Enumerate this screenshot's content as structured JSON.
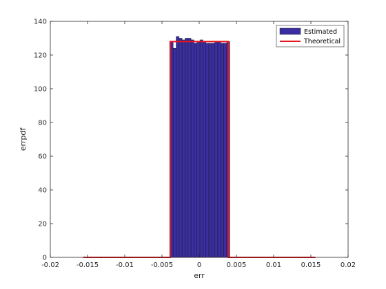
{
  "chart_data": {
    "type": "bar",
    "title": "",
    "xlabel": "err",
    "ylabel": "errpdf",
    "xlim": [
      -0.02,
      0.02
    ],
    "ylim": [
      0,
      140
    ],
    "xticks": [
      -0.02,
      -0.015,
      -0.01,
      -0.005,
      0,
      0.005,
      0.01,
      0.015,
      0.02
    ],
    "xtick_labels": [
      "-0.02",
      "-0.015",
      "-0.01",
      "-0.005",
      "0",
      "0.005",
      "0.01",
      "0.015",
      "0.02"
    ],
    "yticks": [
      0,
      20,
      40,
      60,
      80,
      100,
      120,
      140
    ],
    "ytick_labels": [
      "0",
      "20",
      "40",
      "60",
      "80",
      "100",
      "120",
      "140"
    ],
    "grid": false,
    "legend_position": "top-right",
    "series": [
      {
        "name": "Estimated",
        "kind": "histogram",
        "color": "#3b2ea3",
        "edge_color": "#1a1a1a",
        "bin_edges": [
          -0.0039,
          -0.0035,
          -0.0031,
          -0.0027,
          -0.0023,
          -0.0019,
          -0.0015,
          -0.0011,
          -0.0007,
          -0.0003,
          0.0001,
          0.0005,
          0.0009,
          0.0013,
          0.0017,
          0.0021,
          0.0025,
          0.0029,
          0.0033,
          0.0037,
          0.0041
        ],
        "values": [
          128,
          124,
          131,
          130,
          129,
          130,
          130,
          129,
          127,
          128,
          129,
          128,
          127,
          127,
          127,
          128,
          128,
          127,
          127,
          128
        ]
      },
      {
        "name": "Theoretical",
        "kind": "line",
        "color": "#e8141a",
        "x": [
          -0.0156,
          -0.0039,
          -0.0039,
          0.0039,
          0.0039,
          0.0156
        ],
        "y": [
          0,
          0,
          128,
          128,
          0,
          0
        ]
      }
    ]
  }
}
